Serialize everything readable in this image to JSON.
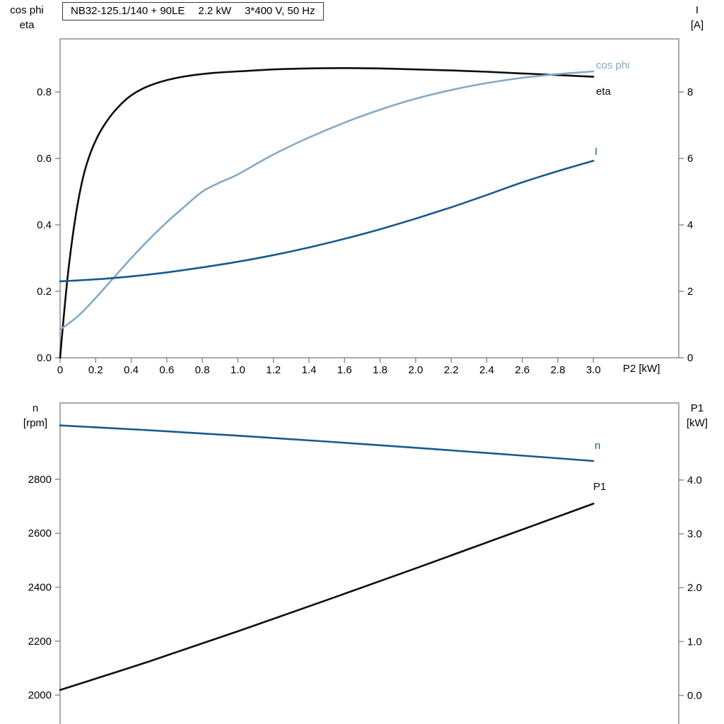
{
  "title": {
    "model": "NB32-125.1/140 + 90LE",
    "power": "2.2 kW",
    "supply": "3*400 V, 50 Hz"
  },
  "colors": {
    "frame": "#8e8e8e",
    "black_curve": "#0d0d0d",
    "dark_blue": "#175a8c",
    "light_blue": "#85a9c5",
    "text": "#000000",
    "background": "#ffffff"
  },
  "axes": {
    "top_left": {
      "line1": "cos phi",
      "line2": "eta"
    },
    "top_right": {
      "line1": "I",
      "line2": "[A]"
    },
    "bottom_left": {
      "line1": "n",
      "line2": "[rpm]"
    },
    "bottom_right": {
      "line1": "P1",
      "line2": "[kW]"
    },
    "x_label": "P2 [kW]"
  },
  "chart_data": [
    {
      "type": "line",
      "title": "NB32-125.1/140 + 90LE  2.2 kW  3*400 V, 50 Hz",
      "xlabel": "P2 [kW]",
      "xlim": [
        0,
        3.48
      ],
      "x_ticks": [
        0,
        0.2,
        0.4,
        0.6,
        0.8,
        1.0,
        1.2,
        1.4,
        1.6,
        1.8,
        2.0,
        2.2,
        2.4,
        2.6,
        2.8,
        3.0
      ],
      "x_tick_labels": [
        "0",
        "0.2",
        "0.4",
        "0.6",
        "0.8",
        "1.0",
        "1.2",
        "1.4",
        "1.6",
        "1.8",
        "2.0",
        "2.2",
        "2.4",
        "2.6",
        "2.8",
        "3.0"
      ],
      "grid": false,
      "y_left": {
        "label": "cos phi / eta",
        "lim": [
          0,
          0.96
        ],
        "ticks": [
          0,
          0.2,
          0.4,
          0.6,
          0.8
        ],
        "tick_labels": [
          "0.0",
          "0.2",
          "0.4",
          "0.6",
          "0.8"
        ]
      },
      "y_right": {
        "label": "I [A]",
        "lim": [
          0,
          9.6
        ],
        "ticks": [
          0,
          2,
          4,
          6,
          8
        ],
        "tick_labels": [
          "0",
          "2",
          "4",
          "6",
          "8"
        ]
      },
      "series": [
        {
          "name": "eta",
          "axis": "left",
          "color": "#0d0d0d",
          "x": [
            0,
            0.02,
            0.05,
            0.09,
            0.13,
            0.17,
            0.22,
            0.28,
            0.34,
            0.4,
            0.48,
            0.58,
            0.7,
            0.85,
            1.0,
            1.2,
            1.4,
            1.6,
            1.8,
            2.0,
            2.2,
            2.4,
            2.6,
            2.8,
            3.0
          ],
          "y": [
            0,
            0.12,
            0.28,
            0.435,
            0.545,
            0.615,
            0.675,
            0.725,
            0.762,
            0.79,
            0.814,
            0.833,
            0.847,
            0.857,
            0.862,
            0.868,
            0.871,
            0.872,
            0.871,
            0.868,
            0.865,
            0.861,
            0.856,
            0.851,
            0.846
          ]
        },
        {
          "name": "cos phi",
          "axis": "left",
          "color": "#85a9c5",
          "x": [
            0,
            0.1,
            0.2,
            0.3,
            0.4,
            0.5,
            0.6,
            0.7,
            0.8,
            0.9,
            1.0,
            1.2,
            1.4,
            1.6,
            1.8,
            2.0,
            2.2,
            2.4,
            2.6,
            2.8,
            3.0
          ],
          "y": [
            0.085,
            0.125,
            0.18,
            0.24,
            0.3,
            0.356,
            0.408,
            0.455,
            0.5,
            0.528,
            0.552,
            0.612,
            0.663,
            0.708,
            0.747,
            0.78,
            0.806,
            0.827,
            0.843,
            0.854,
            0.862
          ]
        },
        {
          "name": "I",
          "axis": "right",
          "color": "#175a8c",
          "x": [
            0,
            0.2,
            0.4,
            0.6,
            0.8,
            1.0,
            1.2,
            1.4,
            1.6,
            1.8,
            2.0,
            2.2,
            2.4,
            2.6,
            2.8,
            3.0
          ],
          "y": [
            2.3,
            2.36,
            2.45,
            2.57,
            2.72,
            2.89,
            3.09,
            3.32,
            3.58,
            3.87,
            4.19,
            4.53,
            4.9,
            5.28,
            5.62,
            5.93
          ]
        }
      ]
    },
    {
      "type": "line",
      "title": "",
      "xlabel": "",
      "xlim": [
        0,
        3.48
      ],
      "x_ticks": [],
      "x_tick_labels": [],
      "grid": false,
      "y_left": {
        "label": "n [rpm]",
        "lim": [
          1877,
          3083
        ],
        "ticks": [
          2000,
          2200,
          2400,
          2600,
          2800
        ],
        "tick_labels": [
          "2000",
          "2200",
          "2400",
          "2600",
          "2800"
        ]
      },
      "y_right": {
        "label": "P1 [kW]",
        "lim": [
          -0.61,
          5.43
        ],
        "ticks": [
          0,
          1,
          2,
          3,
          4
        ],
        "tick_labels": [
          "0.0",
          "1.0",
          "2.0",
          "3.0",
          "4.0"
        ]
      },
      "series": [
        {
          "name": "n",
          "axis": "left",
          "color": "#175a8c",
          "x": [
            0,
            0.5,
            1.0,
            1.5,
            2.0,
            2.5,
            3.0
          ],
          "y": [
            3000,
            2982,
            2962,
            2940,
            2917,
            2893,
            2868
          ]
        },
        {
          "name": "P1",
          "axis": "right",
          "color": "#0d0d0d",
          "x": [
            0,
            0.5,
            1.0,
            1.5,
            2.0,
            2.5,
            3.0
          ],
          "y": [
            0.1,
            0.63,
            1.19,
            1.77,
            2.36,
            2.96,
            3.56
          ]
        }
      ]
    }
  ],
  "curve_labels": {
    "cos_phi": "cos phi",
    "eta": "eta",
    "i": "I",
    "n": "n",
    "p1": "P1"
  }
}
